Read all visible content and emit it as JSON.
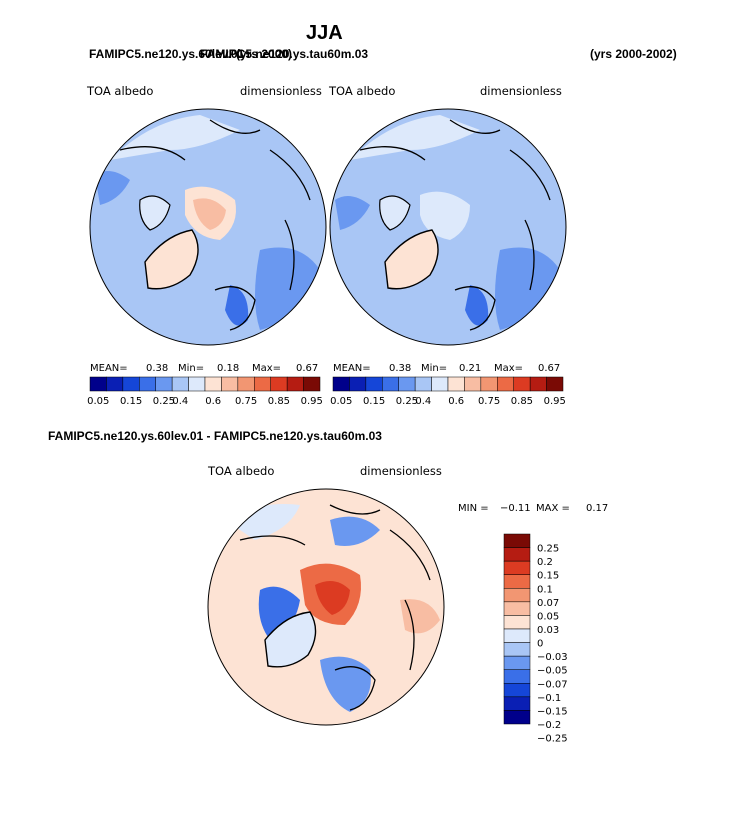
{
  "page": {
    "season": "JJA",
    "case_a": "FAMIPC5.ne120.ys.60lev.01",
    "case_b": "FAMIPC5.ne120.ys.tau60m.03",
    "case_a_years": "(yrs 2000)",
    "case_b_years": "(yrs 2000-2002)",
    "diff_title": "FAMIPC5.ne120.ys.60lev.01 - FAMIPC5.ne120.ys.tau60m.03"
  },
  "colors": {
    "abs_scale": [
      "#00008b",
      "#0a1fb4",
      "#1546d8",
      "#3a6fe8",
      "#6a98f0",
      "#a9c6f5",
      "#dde9fb",
      "#fde3d4",
      "#f8bda3",
      "#f29672",
      "#ec6a45",
      "#dc3b22",
      "#b51c12",
      "#7a0a05"
    ],
    "diff_scale": [
      "#00008b",
      "#0a1fb4",
      "#1546d8",
      "#3a6fe8",
      "#6a98f0",
      "#a9c6f5",
      "#dde9fb",
      "#fde3d4",
      "#f8bda3",
      "#f29672",
      "#ec6a45",
      "#dc3b22",
      "#b51c12",
      "#7a0a05"
    ]
  },
  "chart_data": [
    {
      "type": "heatmap",
      "panel": "left",
      "title": "FAMIPC5.ne120.ys.60lev.01",
      "years": "(yrs 2000)",
      "variable": "TOA albedo",
      "units": "dimensionless",
      "stats": {
        "mean_label": "MEAN=",
        "mean": "0.38",
        "min_label": "Min=",
        "min": "0.18",
        "max_label": "Max=",
        "max": "0.67"
      },
      "colorbar_ticks": [
        "0.05",
        "0.15",
        "0.25",
        "0.4",
        "0.6",
        "0.75",
        "0.85",
        "0.95"
      ]
    },
    {
      "type": "heatmap",
      "panel": "right",
      "title": "FAMIPC5.ne120.ys.tau60m.03",
      "years": "(yrs 2000-2002)",
      "variable": "TOA albedo",
      "units": "dimensionless",
      "stats": {
        "mean_label": "MEAN=",
        "mean": "0.38",
        "min_label": "Min=",
        "min": "0.21",
        "max_label": "Max=",
        "max": "0.67"
      },
      "colorbar_ticks": [
        "0.05",
        "0.15",
        "0.25",
        "0.4",
        "0.6",
        "0.75",
        "0.85",
        "0.95"
      ]
    },
    {
      "type": "heatmap",
      "panel": "difference",
      "title": "FAMIPC5.ne120.ys.60lev.01 - FAMIPC5.ne120.ys.tau60m.03",
      "variable": "TOA albedo",
      "units": "dimensionless",
      "stats": {
        "min_label": "MIN =",
        "min": "−0.11",
        "max_label": "MAX =",
        "max": "0.17"
      },
      "colorbar_ticks": [
        "0.25",
        "0.2",
        "0.15",
        "0.1",
        "0.07",
        "0.05",
        "0.03",
        "0",
        "−0.03",
        "−0.05",
        "−0.07",
        "−0.1",
        "−0.15",
        "−0.2",
        "−0.25"
      ]
    }
  ]
}
